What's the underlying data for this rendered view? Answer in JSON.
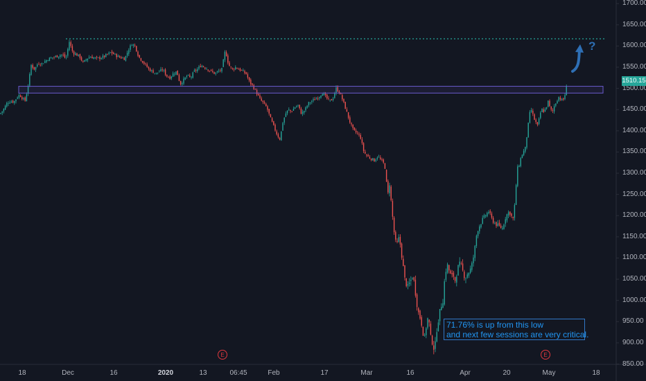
{
  "chart_data": {
    "type": "candlestick",
    "ylim": [
      820,
      1705
    ],
    "y_ticks": [
      "1700.00",
      "1650.00",
      "1600.00",
      "1550.00",
      "1500.00",
      "1450.00",
      "1400.00",
      "1350.00",
      "1300.00",
      "1250.00",
      "1200.00",
      "1150.00",
      "1100.00",
      "1050.00",
      "1000.00",
      "950.00",
      "900.00",
      "850.00"
    ],
    "y_tick_values": [
      1700,
      1650,
      1600,
      1550,
      1500,
      1450,
      1400,
      1350,
      1300,
      1250,
      1200,
      1150,
      1100,
      1050,
      1000,
      950,
      900,
      850
    ],
    "x_ticks": [
      {
        "label": "18",
        "bold": false
      },
      {
        "label": "Dec",
        "bold": false
      },
      {
        "label": "16",
        "bold": false
      },
      {
        "label": "2020",
        "bold": true
      },
      {
        "label": "13",
        "bold": false
      },
      {
        "label": "06:45",
        "bold": false
      },
      {
        "label": "Feb",
        "bold": false
      },
      {
        "label": "17",
        "bold": false
      },
      {
        "label": "Mar",
        "bold": false
      },
      {
        "label": "16",
        "bold": false
      },
      {
        "label": "Apr",
        "bold": false
      },
      {
        "label": "20",
        "bold": false
      },
      {
        "label": "May",
        "bold": false
      },
      {
        "label": "18",
        "bold": false
      }
    ],
    "price_path": [
      [
        0,
        1440
      ],
      [
        5,
        1450
      ],
      [
        10,
        1465
      ],
      [
        15,
        1470
      ],
      [
        20,
        1468
      ],
      [
        25,
        1480
      ],
      [
        28,
        1485
      ],
      [
        32,
        1478
      ],
      [
        36,
        1470
      ],
      [
        40,
        1500
      ],
      [
        45,
        1555
      ],
      [
        50,
        1545
      ],
      [
        55,
        1560
      ],
      [
        60,
        1558
      ],
      [
        70,
        1570
      ],
      [
        80,
        1575
      ],
      [
        90,
        1580
      ],
      [
        95,
        1570
      ],
      [
        100,
        1610
      ],
      [
        105,
        1585
      ],
      [
        110,
        1580
      ],
      [
        115,
        1575
      ],
      [
        120,
        1560
      ],
      [
        125,
        1570
      ],
      [
        130,
        1575
      ],
      [
        140,
        1570
      ],
      [
        150,
        1575
      ],
      [
        160,
        1585
      ],
      [
        170,
        1575
      ],
      [
        180,
        1570
      ],
      [
        185,
        1590
      ],
      [
        190,
        1605
      ],
      [
        195,
        1600
      ],
      [
        200,
        1575
      ],
      [
        205,
        1565
      ],
      [
        210,
        1555
      ],
      [
        215,
        1545
      ],
      [
        220,
        1540
      ],
      [
        225,
        1535
      ],
      [
        230,
        1540
      ],
      [
        235,
        1545
      ],
      [
        240,
        1530
      ],
      [
        245,
        1525
      ],
      [
        250,
        1535
      ],
      [
        255,
        1540
      ],
      [
        260,
        1510
      ],
      [
        265,
        1520
      ],
      [
        270,
        1530
      ],
      [
        275,
        1525
      ],
      [
        280,
        1540
      ],
      [
        285,
        1545
      ],
      [
        290,
        1555
      ],
      [
        295,
        1550
      ],
      [
        300,
        1545
      ],
      [
        305,
        1540
      ],
      [
        310,
        1535
      ],
      [
        315,
        1540
      ],
      [
        320,
        1545
      ],
      [
        325,
        1590
      ],
      [
        330,
        1555
      ],
      [
        335,
        1545
      ],
      [
        340,
        1550
      ],
      [
        345,
        1545
      ],
      [
        350,
        1540
      ],
      [
        355,
        1535
      ],
      [
        360,
        1515
      ],
      [
        365,
        1505
      ],
      [
        370,
        1490
      ],
      [
        375,
        1475
      ],
      [
        380,
        1465
      ],
      [
        385,
        1455
      ],
      [
        390,
        1430
      ],
      [
        395,
        1410
      ],
      [
        400,
        1390
      ],
      [
        404,
        1380
      ],
      [
        408,
        1420
      ],
      [
        412,
        1440
      ],
      [
        416,
        1450
      ],
      [
        420,
        1445
      ],
      [
        425,
        1455
      ],
      [
        430,
        1460
      ],
      [
        435,
        1440
      ],
      [
        440,
        1450
      ],
      [
        445,
        1465
      ],
      [
        450,
        1470
      ],
      [
        455,
        1475
      ],
      [
        460,
        1480
      ],
      [
        465,
        1490
      ],
      [
        470,
        1480
      ],
      [
        475,
        1470
      ],
      [
        480,
        1475
      ],
      [
        485,
        1500
      ],
      [
        490,
        1490
      ],
      [
        495,
        1470
      ],
      [
        500,
        1445
      ],
      [
        505,
        1420
      ],
      [
        510,
        1400
      ],
      [
        515,
        1395
      ],
      [
        520,
        1385
      ],
      [
        525,
        1350
      ],
      [
        530,
        1340
      ],
      [
        535,
        1335
      ],
      [
        540,
        1330
      ],
      [
        545,
        1340
      ],
      [
        550,
        1330
      ],
      [
        555,
        1320
      ],
      [
        558,
        1270
      ],
      [
        560,
        1250
      ],
      [
        562,
        1275
      ],
      [
        565,
        1220
      ],
      [
        568,
        1170
      ],
      [
        570,
        1140
      ],
      [
        573,
        1135
      ],
      [
        576,
        1150
      ],
      [
        580,
        1100
      ],
      [
        584,
        1050
      ],
      [
        588,
        1030
      ],
      [
        592,
        1045
      ],
      [
        596,
        1060
      ],
      [
        600,
        1010
      ],
      [
        603,
        975
      ],
      [
        606,
        960
      ],
      [
        609,
        940
      ],
      [
        612,
        905
      ],
      [
        615,
        940
      ],
      [
        618,
        965
      ],
      [
        621,
        915
      ],
      [
        624,
        900
      ],
      [
        627,
        880
      ],
      [
        630,
        930
      ],
      [
        633,
        960
      ],
      [
        636,
        985
      ],
      [
        639,
        1000
      ],
      [
        642,
        1060
      ],
      [
        645,
        1085
      ],
      [
        648,
        1070
      ],
      [
        651,
        1055
      ],
      [
        654,
        1060
      ],
      [
        657,
        1045
      ],
      [
        660,
        1075
      ],
      [
        663,
        1085
      ],
      [
        666,
        1080
      ],
      [
        669,
        1060
      ],
      [
        672,
        1055
      ],
      [
        675,
        1065
      ],
      [
        678,
        1070
      ],
      [
        681,
        1085
      ],
      [
        684,
        1110
      ],
      [
        687,
        1150
      ],
      [
        690,
        1170
      ],
      [
        693,
        1180
      ],
      [
        696,
        1190
      ],
      [
        700,
        1200
      ],
      [
        705,
        1210
      ],
      [
        710,
        1190
      ],
      [
        715,
        1180
      ],
      [
        720,
        1175
      ],
      [
        725,
        1170
      ],
      [
        730,
        1200
      ],
      [
        735,
        1210
      ],
      [
        740,
        1190
      ],
      [
        743,
        1230
      ],
      [
        746,
        1310
      ],
      [
        749,
        1320
      ],
      [
        752,
        1340
      ],
      [
        755,
        1350
      ],
      [
        758,
        1360
      ],
      [
        761,
        1400
      ],
      [
        764,
        1440
      ],
      [
        767,
        1450
      ],
      [
        770,
        1430
      ],
      [
        773,
        1420
      ],
      [
        776,
        1410
      ],
      [
        779,
        1440
      ],
      [
        782,
        1450
      ],
      [
        785,
        1445
      ],
      [
        788,
        1455
      ],
      [
        791,
        1470
      ],
      [
        794,
        1450
      ],
      [
        797,
        1445
      ],
      [
        800,
        1460
      ],
      [
        803,
        1470
      ],
      [
        806,
        1480
      ],
      [
        809,
        1475
      ],
      [
        812,
        1470
      ],
      [
        815,
        1485
      ],
      [
        818,
        1510
      ]
    ],
    "resistance_level": 1617,
    "zone": [
      1489,
      1505
    ],
    "last_price_label": "1510.15",
    "annotation": [
      "71.76% is up from this low",
      "and next few sessions are very critical."
    ],
    "earnings_marker": "E",
    "arrow_label": "?",
    "colors": {
      "background": "#131722",
      "up": "#26a69a",
      "down": "#ef5350",
      "resistance": "#26a69a",
      "zone": "#6a5acd",
      "annotation": "#2196f3",
      "earnings": "#e0383e",
      "arrow": "#2e6fb5",
      "axis_text": "#b2b5be"
    }
  }
}
